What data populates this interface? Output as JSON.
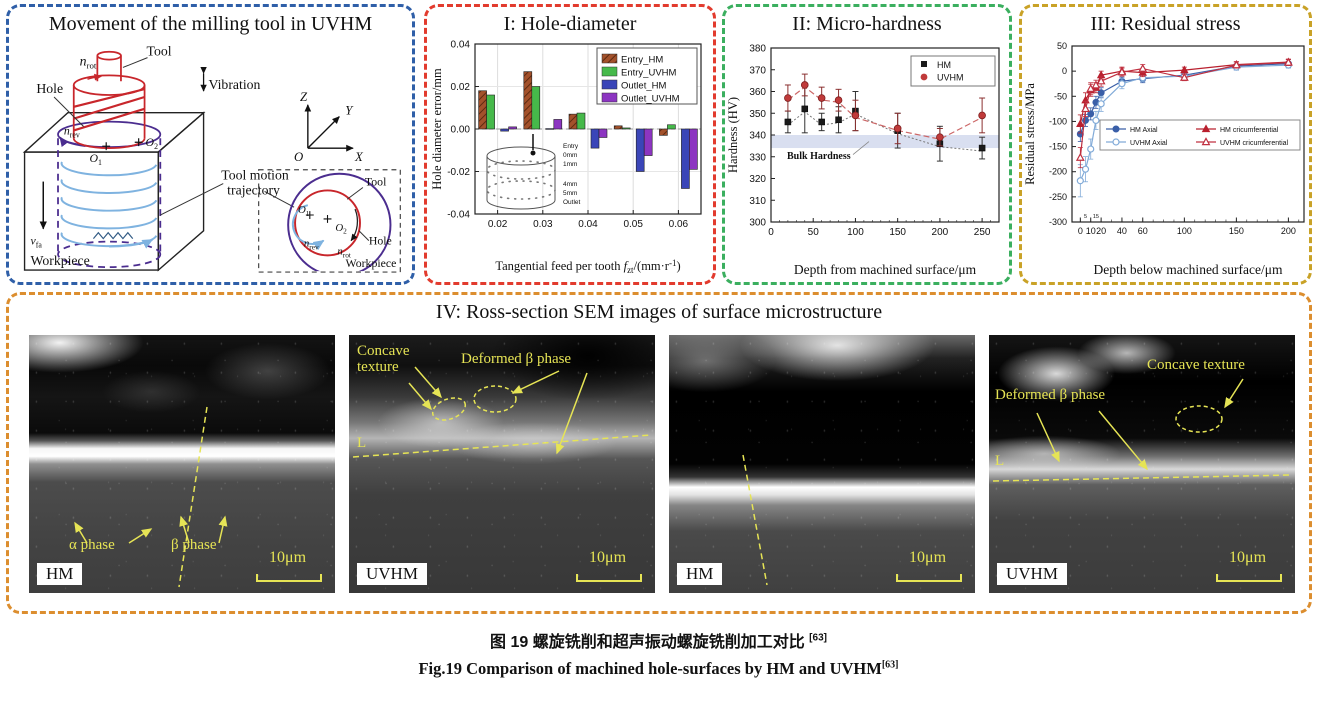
{
  "movement": {
    "title": "Movement of the milling tool in UVHM",
    "labels": {
      "tool": "Tool",
      "hole": "Hole",
      "vibration": "Vibration",
      "vib_arrow": "↕",
      "workpiece": "Workpiece",
      "trajectory_1": "Tool motion",
      "trajectory_2": "trajectory",
      "n": "n",
      "rot": "rot",
      "rev": "rev",
      "v": "v",
      "fa": "fa",
      "o": "O",
      "sub1": "1",
      "sub2": "2",
      "axis_z": "Z",
      "axis_y": "Y",
      "axis_x": "X",
      "axis_o": "O"
    },
    "inset": {
      "tool": "Tool",
      "hole": "Hole",
      "workpiece": "Workpiece"
    }
  },
  "chart_data": [
    {
      "type": "bar",
      "title": "I: Hole-diameter",
      "ylabel": "Hole diameter error/mm",
      "xlabel_parts": {
        "prefix": "Tangential feed per tooth ",
        "var": "f",
        "sub": "zt",
        "mid": "/(mm·r",
        "sup": "-1",
        "end": ")"
      },
      "categories": [
        "0.02",
        "0.03",
        "0.04",
        "0.05",
        "0.06"
      ],
      "ylim": [
        -0.04,
        0.04
      ],
      "ytick_labels": [
        "0.04",
        "0.02",
        "0.00",
        "-0.02",
        "-0.04"
      ],
      "series": [
        {
          "name": "Entry_HM",
          "color": "#A3512B",
          "hatch": true,
          "values": [
            0.018,
            0.027,
            0.007,
            0.0015,
            -0.003
          ]
        },
        {
          "name": "Entry_UVHM",
          "color": "#46B94A",
          "hatch": false,
          "values": [
            0.016,
            0.02,
            0.0075,
            0.0005,
            0.002
          ]
        },
        {
          "name": "Outlet_HM",
          "color": "#3A45B8",
          "hatch": false,
          "values": [
            -0.001,
            0.0002,
            -0.009,
            -0.02,
            -0.028
          ]
        },
        {
          "name": "Outlet_UVHM",
          "color": "#8C35C1",
          "hatch": false,
          "values": [
            0.001,
            0.0045,
            -0.004,
            -0.0125,
            -0.019
          ]
        }
      ],
      "inset_labels": [
        "Entry",
        "0mm",
        "1mm",
        "4mm",
        "5mm",
        "Outlet"
      ]
    },
    {
      "type": "scatter",
      "title": "II: Micro-hardness",
      "xlabel": "Depth from machined surface/μm",
      "ylabel": "Hardness (HV)",
      "x": [
        20,
        40,
        60,
        80,
        100,
        150,
        200,
        250
      ],
      "xlim": [
        0,
        270
      ],
      "ylim": [
        300,
        380
      ],
      "xticks": [
        0,
        50,
        100,
        150,
        200,
        250
      ],
      "yticks": [
        300,
        310,
        320,
        330,
        340,
        350,
        360,
        370,
        380
      ],
      "band": [
        334,
        340
      ],
      "annotation": "Bulk Hardness",
      "series": [
        {
          "name": "HM",
          "color": "#1A1A1A",
          "marker": "square",
          "values": [
            346,
            352,
            346,
            347,
            351,
            342,
            336,
            334
          ],
          "err": [
            5,
            11,
            4,
            6,
            9,
            8,
            8,
            5
          ]
        },
        {
          "name": "UVHM",
          "color": "#C03A3A",
          "marker": "circle",
          "values": [
            357,
            363,
            357,
            356,
            349,
            343,
            339,
            349
          ],
          "err": [
            6,
            5,
            5,
            5,
            7,
            7,
            4,
            8
          ]
        }
      ]
    },
    {
      "type": "line",
      "title": "III: Residual stress",
      "xlabel": "Depth below machined surface/μm",
      "ylabel": "Residual stress/MPa",
      "x": [
        0,
        5,
        10,
        15,
        20,
        40,
        60,
        100,
        150,
        200
      ],
      "xlim": [
        -8,
        215
      ],
      "ylim": [
        -300,
        50
      ],
      "xticks": [
        0,
        10,
        20,
        40,
        60,
        100,
        150,
        200
      ],
      "yticks": [
        50,
        0,
        -50,
        -100,
        -150,
        -200,
        -250,
        -300
      ],
      "minor_xtick_labels": [
        "5",
        "15"
      ],
      "series": [
        {
          "name": "HM  Axial",
          "color": "#3A5FA8",
          "marker": "circle-filled",
          "values": [
            -125,
            -98,
            -85,
            -62,
            -43,
            -20,
            -15,
            -8,
            10,
            15
          ],
          "err": [
            15,
            12,
            12,
            12,
            10,
            8,
            8,
            8,
            8,
            8
          ]
        },
        {
          "name": "UVHM  Axial",
          "color": "#82ABD8",
          "marker": "circle-open",
          "values": [
            -218,
            -195,
            -155,
            -98,
            -65,
            -25,
            -13,
            -10,
            8,
            12
          ],
          "err": [
            32,
            25,
            20,
            18,
            15,
            10,
            8,
            8,
            6,
            6
          ]
        },
        {
          "name": "HM cricumferential",
          "color": "#B9202E",
          "marker": "triangle-filled",
          "values": [
            -105,
            -58,
            -38,
            -33,
            -8,
            0,
            -3,
            2,
            13,
            18
          ],
          "err": [
            18,
            15,
            12,
            10,
            8,
            8,
            8,
            6,
            6,
            6
          ]
        },
        {
          "name": "UVHM cricumferential",
          "color": "#C03040",
          "marker": "triangle-open",
          "values": [
            -172,
            -75,
            -35,
            -28,
            -20,
            -2,
            5,
            -13,
            12,
            17
          ],
          "err": [
            20,
            15,
            12,
            10,
            10,
            8,
            8,
            6,
            6,
            6
          ]
        }
      ]
    }
  ],
  "sem": {
    "title": "IV: Ross-section SEM images of surface microstructure",
    "images": [
      {
        "tag": "HM",
        "scale": "10μm",
        "alpha_phase": "α phase",
        "beta_phase": "β phase"
      },
      {
        "tag": "UVHM",
        "scale": "10μm",
        "concave": "Concave texture",
        "deformed": "Deformed β phase",
        "line_label": "L"
      },
      {
        "tag": "HM",
        "scale": "10μm"
      },
      {
        "tag": "UVHM",
        "scale": "10μm",
        "concave": "Concave texture",
        "deformed": "Deformed β phase",
        "line_label": "L"
      }
    ]
  },
  "caption": {
    "zh": "图 19  螺旋铣削和超声振动螺旋铣削加工对比 ",
    "zh_ref": "[63]",
    "en": "Fig.19  Comparison of machined hole-surfaces by HM and UVHM",
    "en_ref": "[63]"
  }
}
